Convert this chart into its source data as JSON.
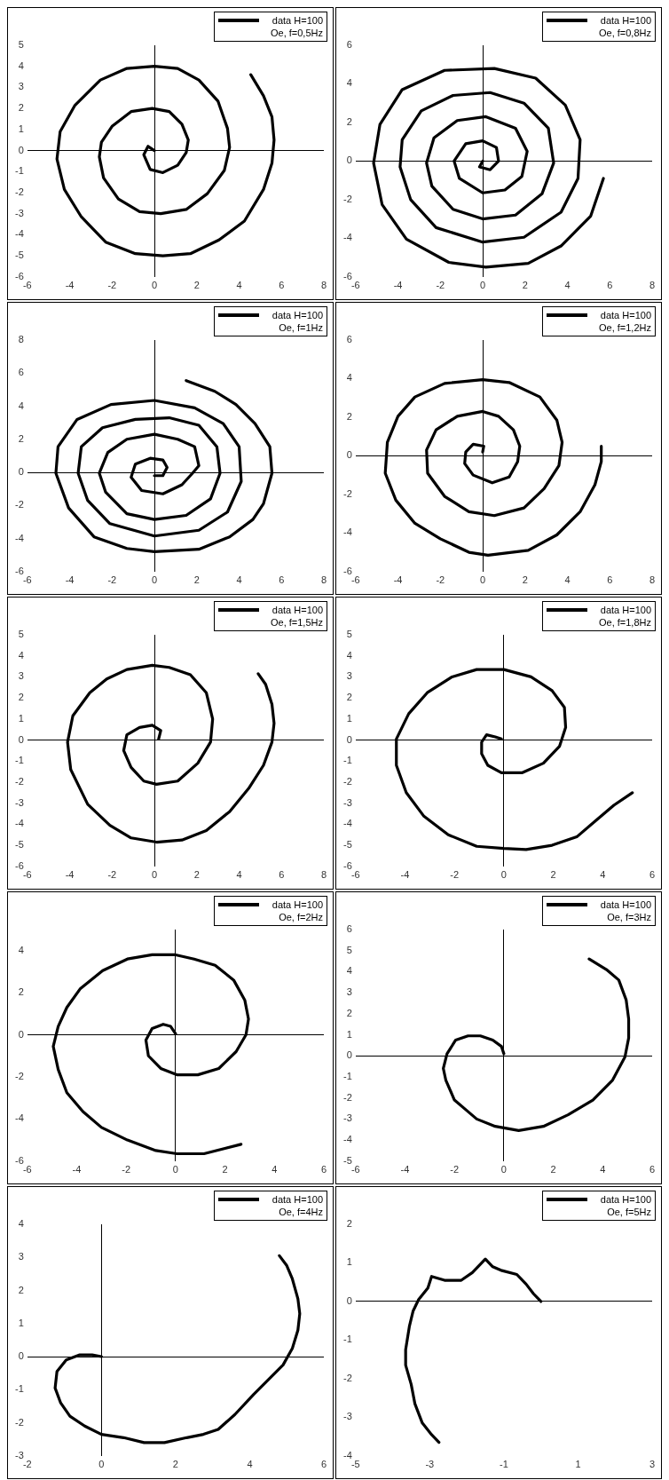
{
  "chart_data": [
    {
      "type": "line",
      "xlim": [
        -6,
        8
      ],
      "ylim": [
        -6,
        5
      ],
      "xticks": [
        -6,
        -4,
        -2,
        0,
        2,
        4,
        6,
        8
      ],
      "yticks": [
        -6,
        -5,
        -4,
        -3,
        -2,
        -1,
        0,
        1,
        2,
        3,
        4,
        5
      ],
      "legend": "top right",
      "marker": "none",
      "line_style": "solid",
      "series": [
        {
          "name": "data H=100 Oe, f=0,5Hz",
          "color": "#000000",
          "x": [
            0,
            -0.3,
            -0.5,
            -0.2,
            0.4,
            1.1,
            1.5,
            1.6,
            1.3,
            0.7,
            -0.1,
            -1.1,
            -2.0,
            -2.5,
            -2.6,
            -2.4,
            -1.7,
            -0.7,
            0.3,
            1.5,
            2.5,
            3.3,
            3.55,
            3.45,
            3.0,
            2.1,
            1.1,
            0,
            -1.3,
            -2.55,
            -3.75,
            -4.45,
            -4.6,
            -4.25,
            -3.45,
            -2.3,
            -0.9,
            0.4,
            1.7,
            3.05,
            4.25,
            5.15,
            5.55,
            5.65,
            5.55,
            5.15,
            4.55
          ],
          "values": [
            0,
            0.2,
            -0.2,
            -0.9,
            -1.05,
            -0.7,
            -0.1,
            0.5,
            1.25,
            1.85,
            2.0,
            1.85,
            1.15,
            0.4,
            -0.3,
            -1.3,
            -2.3,
            -2.9,
            -3.0,
            -2.8,
            -2.05,
            -0.95,
            0.15,
            1.05,
            2.35,
            3.35,
            3.9,
            4.0,
            3.9,
            3.35,
            2.15,
            0.9,
            -0.4,
            -1.85,
            -3.15,
            -4.35,
            -4.9,
            -5.0,
            -4.9,
            -4.25,
            -3.35,
            -1.85,
            -0.6,
            0.5,
            1.6,
            2.6,
            3.6
          ]
        }
      ]
    },
    {
      "type": "line",
      "xlim": [
        -6,
        8
      ],
      "ylim": [
        -6,
        6
      ],
      "xticks": [
        -6,
        -4,
        -2,
        0,
        2,
        4,
        6,
        8
      ],
      "yticks": [
        -6,
        -4,
        -2,
        0,
        2,
        4,
        6
      ],
      "legend": "top right",
      "marker": "none",
      "line_style": "solid",
      "series": [
        {
          "name": "data H=100 Oe, f=0,8Hz",
          "color": "#000000",
          "x": [
            0,
            -0.15,
            0.35,
            0.75,
            0.65,
            0,
            -0.8,
            -1.35,
            -1.1,
            0,
            1.05,
            1.85,
            2.1,
            1.55,
            0.15,
            -1.2,
            -2.3,
            -2.65,
            -2.4,
            -1.4,
            0,
            1.55,
            2.8,
            3.35,
            3.1,
            1.95,
            0.35,
            -1.4,
            -2.9,
            -3.8,
            -3.9,
            -3.4,
            -2.2,
            0,
            1.95,
            3.7,
            4.5,
            4.6,
            3.9,
            2.5,
            0.55,
            -1.8,
            -3.8,
            -4.85,
            -5.15,
            -4.75,
            -3.6,
            -1.6,
            0.15,
            2.15,
            3.7,
            5.1,
            5.7
          ],
          "values": [
            0,
            -0.3,
            -0.45,
            0,
            0.7,
            1.05,
            0.9,
            0,
            -0.9,
            -1.65,
            -1.5,
            -0.8,
            0.5,
            1.7,
            2.3,
            2.1,
            1.2,
            -0.1,
            -1.3,
            -2.5,
            -3.0,
            -2.8,
            -1.7,
            -0.1,
            1.7,
            3.0,
            3.55,
            3.4,
            2.6,
            1.1,
            -0.3,
            -2.0,
            -3.45,
            -4.2,
            -3.95,
            -2.65,
            -0.9,
            1.1,
            2.9,
            4.3,
            4.8,
            4.7,
            3.7,
            1.9,
            -0.1,
            -2.25,
            -4.05,
            -5.25,
            -5.5,
            -5.3,
            -4.4,
            -2.85,
            -0.9
          ]
        }
      ]
    },
    {
      "type": "line",
      "xlim": [
        -6,
        8
      ],
      "ylim": [
        -6,
        8
      ],
      "xticks": [
        -6,
        -4,
        -2,
        0,
        2,
        4,
        6,
        8
      ],
      "yticks": [
        -6,
        -4,
        -2,
        0,
        2,
        4,
        6,
        8
      ],
      "legend": "top right",
      "marker": "none",
      "line_style": "solid",
      "series": [
        {
          "name": "data H=100 Oe, f=1Hz",
          "color": "#000000",
          "x": [
            0,
            0.4,
            0.6,
            0.4,
            -0.2,
            -0.9,
            -1.1,
            -0.6,
            0.4,
            1.3,
            1.8,
            2.1,
            1.9,
            1.1,
            0,
            -1.3,
            -2.2,
            -2.6,
            -2.3,
            -1.3,
            0,
            1.5,
            2.65,
            3.1,
            2.95,
            2.1,
            0.7,
            -0.9,
            -2.45,
            -3.45,
            -3.6,
            -3.15,
            -2.1,
            0,
            2.1,
            3.45,
            4.1,
            4.0,
            3.25,
            1.9,
            0,
            -2.05,
            -3.65,
            -4.55,
            -4.65,
            -4.05,
            -2.85,
            -1.3,
            0,
            2.1,
            3.55,
            4.65,
            5.15,
            5.55,
            5.45,
            4.75,
            3.85,
            2.85,
            1.5
          ],
          "values": [
            -0.2,
            -0.2,
            0.3,
            0.75,
            0.85,
            0.5,
            -0.3,
            -1.1,
            -1.3,
            -0.75,
            -0.05,
            0.4,
            1.55,
            2.0,
            2.3,
            2.0,
            1.2,
            -0.05,
            -1.2,
            -2.5,
            -2.85,
            -2.6,
            -1.6,
            -0.05,
            1.55,
            2.85,
            3.3,
            3.2,
            2.7,
            1.55,
            -0.05,
            -1.7,
            -3.1,
            -3.85,
            -3.5,
            -2.4,
            -0.55,
            1.55,
            2.95,
            3.9,
            4.35,
            4.1,
            3.2,
            1.55,
            -0.05,
            -2.15,
            -3.9,
            -4.6,
            -4.8,
            -4.65,
            -3.9,
            -2.85,
            -1.9,
            -0.05,
            1.55,
            2.95,
            4.1,
            4.9,
            5.55
          ]
        }
      ]
    },
    {
      "type": "line",
      "xlim": [
        -6,
        8
      ],
      "ylim": [
        -6,
        6
      ],
      "xticks": [
        -6,
        -4,
        -2,
        0,
        2,
        4,
        6,
        8
      ],
      "yticks": [
        -6,
        -4,
        -2,
        0,
        2,
        4,
        6
      ],
      "legend": "top right",
      "marker": "none",
      "line_style": "solid",
      "series": [
        {
          "name": "data H=100 Oe, f=1,2Hz",
          "color": "#000000",
          "x": [
            0,
            0.05,
            -0.45,
            -0.8,
            -0.85,
            -0.45,
            0.45,
            1.25,
            1.65,
            1.75,
            1.45,
            0.75,
            0,
            -1.2,
            -2.2,
            -2.65,
            -2.6,
            -1.8,
            -0.65,
            0.55,
            1.95,
            2.9,
            3.6,
            3.75,
            3.5,
            2.7,
            1.25,
            0,
            -1.8,
            -3.2,
            -4.0,
            -4.5,
            -4.6,
            -4.1,
            -3.2,
            -2.0,
            -0.65,
            0.25,
            2.15,
            3.5,
            4.6,
            5.3,
            5.6,
            5.6
          ],
          "values": [
            0.2,
            0.5,
            0.6,
            0.2,
            -0.4,
            -1.0,
            -1.4,
            -1.1,
            -0.3,
            0.5,
            1.35,
            2.05,
            2.3,
            2.05,
            1.35,
            0.3,
            -0.9,
            -2.1,
            -2.9,
            -3.1,
            -2.7,
            -1.7,
            -0.5,
            0.7,
            1.85,
            3.05,
            3.8,
            3.95,
            3.75,
            3.05,
            2.05,
            0.7,
            -0.9,
            -2.3,
            -3.5,
            -4.3,
            -5.0,
            -5.15,
            -4.9,
            -4.1,
            -2.9,
            -1.5,
            -0.3,
            0.5
          ]
        }
      ]
    },
    {
      "type": "line",
      "xlim": [
        -6,
        8
      ],
      "ylim": [
        -6,
        5
      ],
      "xticks": [
        -6,
        -4,
        -2,
        0,
        2,
        4,
        6,
        8
      ],
      "yticks": [
        -6,
        -5,
        -4,
        -3,
        -2,
        -1,
        0,
        1,
        2,
        3,
        4,
        5
      ],
      "legend": "top right",
      "marker": "none",
      "line_style": "solid",
      "series": [
        {
          "name": "data H=100 Oe, f=1,5Hz",
          "color": "#000000",
          "x": [
            0.2,
            0.3,
            -0.1,
            -0.7,
            -1.3,
            -1.45,
            -1.1,
            -0.5,
            0.1,
            1.1,
            2.05,
            2.65,
            2.75,
            2.45,
            1.7,
            0.7,
            -0.1,
            -1.3,
            -2.25,
            -3.05,
            -3.85,
            -4.1,
            -3.95,
            -3.15,
            -2.1,
            -1.1,
            0.1,
            1.3,
            2.45,
            3.55,
            4.45,
            5.15,
            5.55,
            5.65,
            5.55,
            5.25,
            4.9
          ],
          "values": [
            0.05,
            0.45,
            0.7,
            0.6,
            0.25,
            -0.5,
            -1.3,
            -1.95,
            -2.1,
            -1.95,
            -1.1,
            -0.1,
            1.0,
            2.25,
            3.1,
            3.45,
            3.55,
            3.35,
            2.9,
            2.25,
            1.15,
            -0.1,
            -1.4,
            -3.05,
            -4.05,
            -4.65,
            -4.85,
            -4.75,
            -4.3,
            -3.4,
            -2.3,
            -1.2,
            -0.1,
            0.8,
            1.7,
            2.65,
            3.15
          ]
        }
      ]
    },
    {
      "type": "line",
      "xlim": [
        -6,
        6
      ],
      "ylim": [
        -6,
        5
      ],
      "xticks": [
        -6,
        -4,
        -2,
        0,
        2,
        4,
        6
      ],
      "yticks": [
        -6,
        -5,
        -4,
        -3,
        -2,
        -1,
        0,
        1,
        2,
        3,
        4,
        5
      ],
      "legend": "top right",
      "marker": "none",
      "line_style": "solid",
      "series": [
        {
          "name": "data H=100 Oe, f=1,8Hz",
          "color": "#000000",
          "x": [
            -0.1,
            -0.35,
            -0.7,
            -0.9,
            -0.9,
            -0.65,
            -0.1,
            0.75,
            1.6,
            2.25,
            2.5,
            2.45,
            1.95,
            1.1,
            0,
            -1.1,
            -2.1,
            -3.1,
            -3.85,
            -4.35,
            -4.35,
            -3.95,
            -3.25,
            -2.25,
            -1.1,
            0,
            0.9,
            1.95,
            2.95,
            3.7,
            4.45,
            5.2
          ],
          "values": [
            0.05,
            0.15,
            0.25,
            -0.1,
            -0.65,
            -1.2,
            -1.55,
            -1.55,
            -1.1,
            -0.3,
            0.6,
            1.55,
            2.35,
            3.0,
            3.35,
            3.35,
            3.0,
            2.25,
            1.25,
            0.05,
            -1.2,
            -2.5,
            -3.6,
            -4.5,
            -5.05,
            -5.15,
            -5.2,
            -5.0,
            -4.6,
            -3.85,
            -3.1,
            -2.5
          ]
        }
      ]
    },
    {
      "type": "line",
      "xlim": [
        -6,
        6
      ],
      "ylim": [
        -6,
        5
      ],
      "xticks": [
        -6,
        -4,
        -2,
        0,
        2,
        4,
        6
      ],
      "yticks": [
        -6,
        -4,
        -2,
        0,
        2,
        4
      ],
      "legend": "top right",
      "marker": "none",
      "line_style": "solid",
      "series": [
        {
          "name": "data H=100 Oe, f=2Hz",
          "color": "#000000",
          "x": [
            0,
            -0.2,
            -0.5,
            -0.95,
            -1.2,
            -1.1,
            -0.6,
            0.05,
            0.9,
            1.75,
            2.45,
            2.85,
            2.95,
            2.8,
            2.35,
            1.6,
            0.75,
            0,
            -0.95,
            -1.95,
            -2.95,
            -3.85,
            -4.4,
            -4.75,
            -4.95,
            -4.75,
            -4.4,
            -3.75,
            -3.0,
            -1.95,
            -0.8,
            0.05,
            1.15,
            2.65
          ],
          "values": [
            0.05,
            0.4,
            0.5,
            0.3,
            -0.25,
            -1.0,
            -1.6,
            -1.9,
            -1.9,
            -1.6,
            -0.8,
            0,
            0.75,
            1.65,
            2.6,
            3.3,
            3.6,
            3.8,
            3.8,
            3.6,
            3.05,
            2.2,
            1.3,
            0.4,
            -0.55,
            -1.65,
            -2.75,
            -3.65,
            -4.4,
            -5.0,
            -5.5,
            -5.65,
            -5.65,
            -5.2
          ]
        }
      ]
    },
    {
      "type": "line",
      "xlim": [
        -6,
        6
      ],
      "ylim": [
        -5,
        6
      ],
      "xticks": [
        -6,
        -4,
        -2,
        0,
        2,
        4,
        6
      ],
      "yticks": [
        -5,
        -4,
        -3,
        -2,
        -1,
        0,
        1,
        2,
        3,
        4,
        5,
        6
      ],
      "legend": "top right",
      "marker": "none",
      "line_style": "solid",
      "series": [
        {
          "name": "data H=100 Oe, f=3Hz",
          "color": "#000000",
          "x": [
            0,
            -0.1,
            -0.45,
            -0.95,
            -1.45,
            -1.95,
            -2.3,
            -2.45,
            -2.35,
            -2.0,
            -1.5,
            -1.1,
            -0.35,
            0.6,
            1.6,
            2.6,
            3.6,
            4.4,
            4.9,
            5.05,
            5.05,
            4.95,
            4.65,
            4.15,
            3.45
          ],
          "values": [
            0.1,
            0.45,
            0.75,
            0.95,
            0.95,
            0.75,
            0.1,
            -0.6,
            -1.15,
            -2.1,
            -2.6,
            -3.0,
            -3.35,
            -3.55,
            -3.35,
            -2.8,
            -2.1,
            -1.15,
            -0.05,
            0.85,
            1.75,
            2.65,
            3.6,
            4.1,
            4.6
          ]
        }
      ]
    },
    {
      "type": "line",
      "xlim": [
        -2,
        6
      ],
      "ylim": [
        -3,
        4
      ],
      "xticks": [
        -2,
        0,
        2,
        4,
        6
      ],
      "yticks": [
        -3,
        -2,
        -1,
        0,
        1,
        2,
        3,
        4
      ],
      "legend": "top right",
      "marker": "none",
      "line_style": "solid",
      "series": [
        {
          "name": "data H=100 Oe, f=4Hz",
          "color": "#000000",
          "x": [
            0,
            -0.25,
            -0.6,
            -0.95,
            -1.2,
            -1.25,
            -1.1,
            -0.85,
            -0.45,
            0,
            0.6,
            1.15,
            1.7,
            2.3,
            2.75,
            3.15,
            3.6,
            4.1,
            4.5,
            4.9,
            5.15,
            5.3,
            5.35,
            5.3,
            5.15,
            5.0,
            4.8
          ],
          "values": [
            0,
            0.05,
            0.05,
            -0.1,
            -0.45,
            -0.95,
            -1.4,
            -1.8,
            -2.1,
            -2.35,
            -2.45,
            -2.6,
            -2.6,
            -2.45,
            -2.35,
            -2.2,
            -1.75,
            -1.15,
            -0.7,
            -0.25,
            0.25,
            0.8,
            1.3,
            1.75,
            2.35,
            2.75,
            3.05
          ]
        }
      ]
    },
    {
      "type": "line",
      "xlim": [
        -5,
        3
      ],
      "ylim": [
        -4,
        2
      ],
      "xticks": [
        -5,
        -3,
        -1,
        1,
        3
      ],
      "yticks": [
        -4,
        -3,
        -2,
        -1,
        0,
        1,
        2
      ],
      "legend": "top right",
      "marker": "none",
      "line_style": "solid",
      "series": [
        {
          "name": "data H=100 Oe, f=5Hz",
          "color": "#000000",
          "x": [
            0,
            -0.2,
            -0.4,
            -0.65,
            -1.05,
            -1.3,
            -1.5,
            -1.85,
            -2.15,
            -2.6,
            -2.95,
            -3.05,
            -3.3,
            -3.45,
            -3.55,
            -3.65,
            -3.65,
            -3.5,
            -3.4,
            -3.2,
            -2.95,
            -2.75
          ],
          "values": [
            0,
            0.2,
            0.45,
            0.7,
            0.8,
            0.9,
            1.1,
            0.75,
            0.55,
            0.55,
            0.65,
            0.35,
            0.05,
            -0.25,
            -0.65,
            -1.25,
            -1.65,
            -2.15,
            -2.65,
            -3.15,
            -3.45,
            -3.65
          ]
        }
      ]
    }
  ]
}
